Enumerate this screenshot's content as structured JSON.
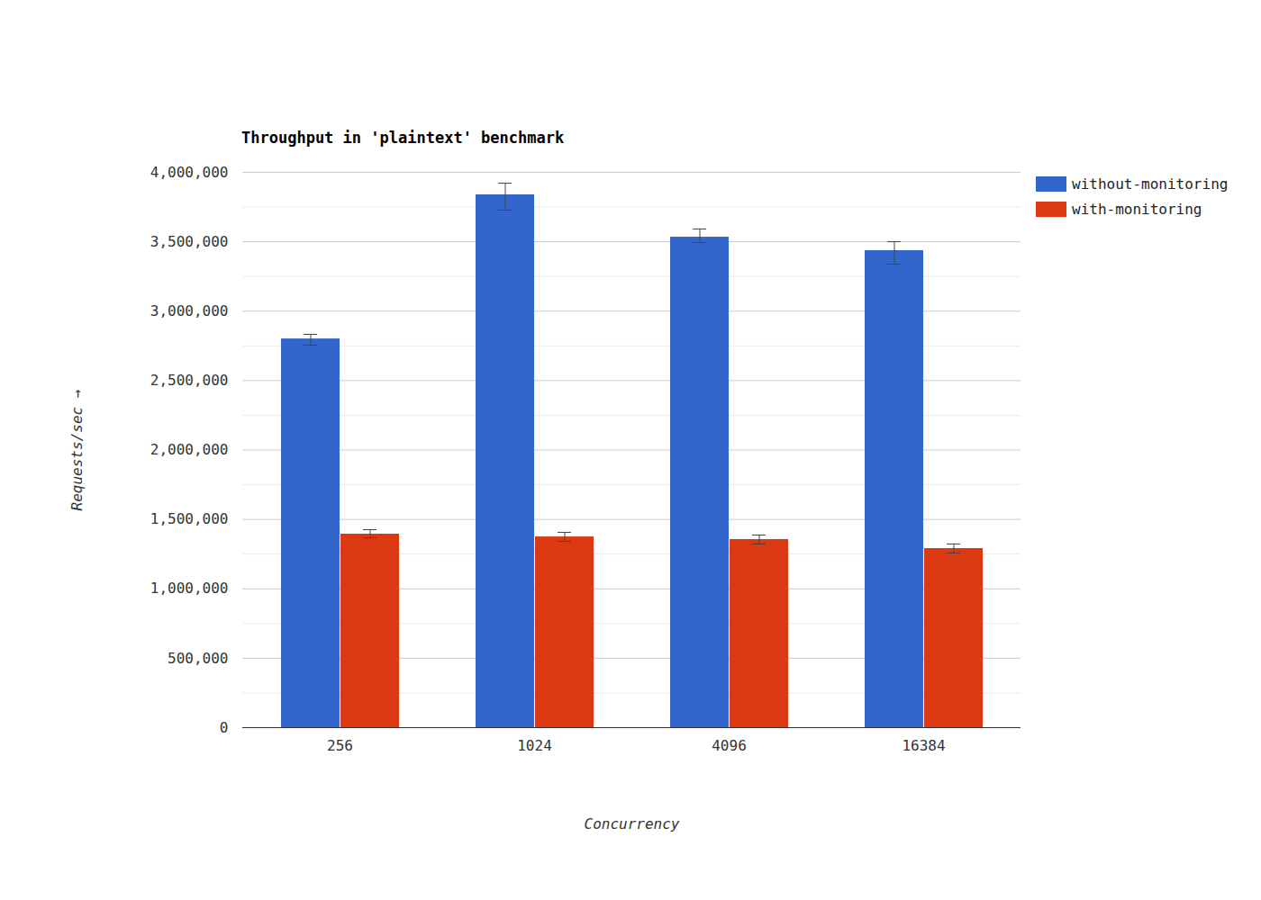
{
  "chart_data": {
    "type": "bar",
    "title": "Throughput in 'plaintext' benchmark",
    "x_label": "Concurrency",
    "y_label": "Requests/sec",
    "categories": [
      "256",
      "1024",
      "4096",
      "16384"
    ],
    "series": [
      {
        "name": "without-monitoring",
        "color": "#3366cc",
        "values": [
          2800000,
          3838000,
          3533000,
          3436000
        ],
        "error_low": [
          2755000,
          3728000,
          3494000,
          3339000
        ],
        "error_high": [
          2833000,
          3922000,
          3592000,
          3501000
        ]
      },
      {
        "name": "with-monitoring",
        "color": "#dc3912",
        "values": [
          1394000,
          1374000,
          1355000,
          1290000
        ],
        "error_low": [
          1368000,
          1342000,
          1323000,
          1258000
        ],
        "error_high": [
          1426000,
          1407000,
          1387000,
          1323000
        ]
      }
    ],
    "ylim": [
      0,
      4000000
    ],
    "yticks": [
      0,
      {
        "value": 500000,
        "label": "500,000"
      },
      {
        "value": 1000000,
        "label": "1,000,000"
      },
      {
        "value": 1500000,
        "label": "1,500,000"
      },
      {
        "value": 2000000,
        "label": "2,000,000"
      },
      {
        "value": 2500000,
        "label": "2,500,000"
      },
      {
        "value": 3000000,
        "label": "3,000,000"
      },
      {
        "value": 3500000,
        "label": "3,500,000"
      },
      {
        "value": 4000000,
        "label": "4,000,000"
      }
    ],
    "grid": true,
    "legend": "right"
  }
}
